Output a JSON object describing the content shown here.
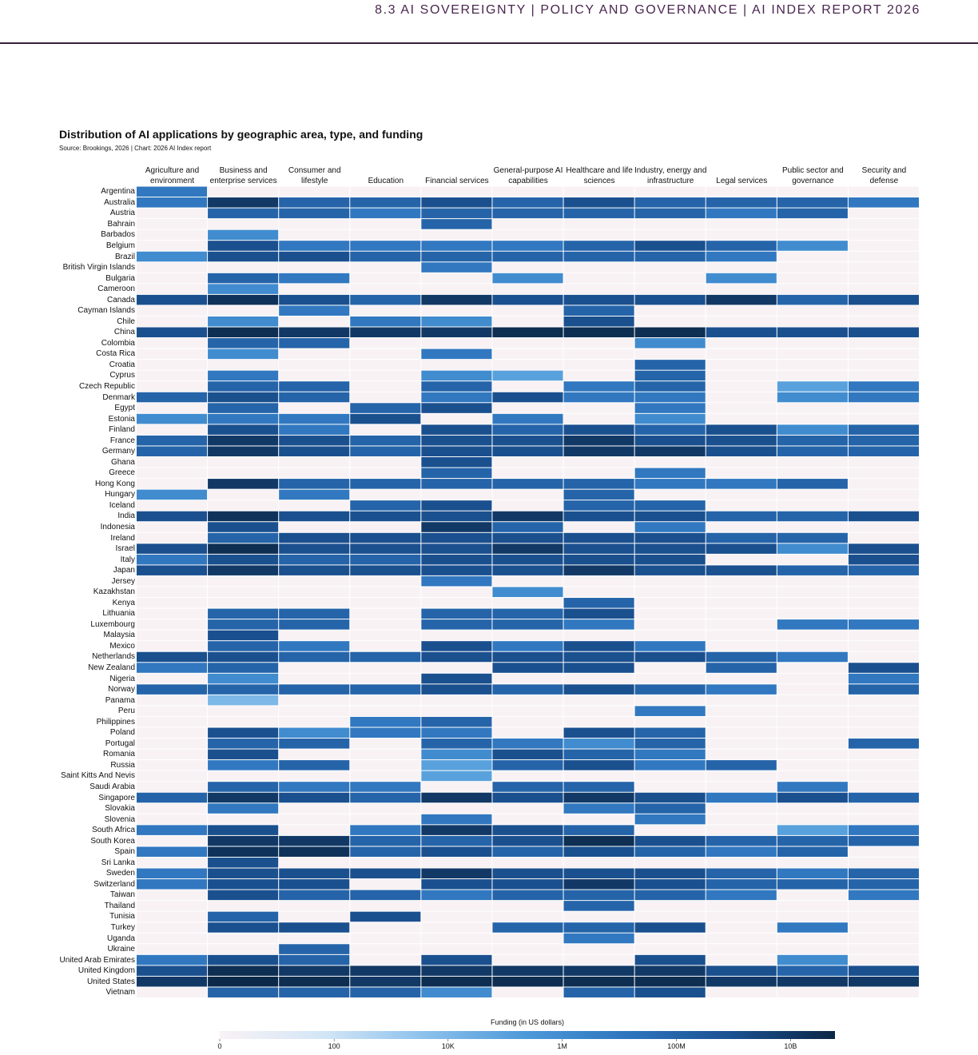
{
  "header": "8.3 AI SOVEREIGNTY  |  POLICY AND GOVERNANCE  |  AI INDEX REPORT 2026",
  "chart_data": {
    "type": "heatmap",
    "title": "Distribution of AI applications by geographic area, type, and funding",
    "subtitle": "Source: Brookings, 2026 | Chart: 2026 AI Index report",
    "colorbar_label": "Funding (in US dollars)",
    "x": [
      "Agriculture and environment",
      "Business and enterprise services",
      "Consumer and lifestyle",
      "Education",
      "Financial services",
      "General-purpose AI capabilities",
      "Healthcare and life sciences",
      "Industry, energy and infrastructure",
      "Legal services",
      "Public sector and governance",
      "Security and defense"
    ],
    "y": [
      "Argentina",
      "Australia",
      "Austria",
      "Bahrain",
      "Barbados",
      "Belgium",
      "Brazil",
      "British Virgin Islands",
      "Bulgaria",
      "Cameroon",
      "Canada",
      "Cayman Islands",
      "Chile",
      "China",
      "Colombia",
      "Costa Rica",
      "Croatia",
      "Cyprus",
      "Czech Republic",
      "Denmark",
      "Egypt",
      "Estonia",
      "Finland",
      "France",
      "Germany",
      "Ghana",
      "Greece",
      "Hong Kong",
      "Hungary",
      "Iceland",
      "India",
      "Indonesia",
      "Ireland",
      "Israel",
      "Italy",
      "Japan",
      "Jersey",
      "Kazakhstan",
      "Kenya",
      "Lithuania",
      "Luxembourg",
      "Malaysia",
      "Mexico",
      "Netherlands",
      "New Zealand",
      "Nigeria",
      "Norway",
      "Panama",
      "Peru",
      "Philippines",
      "Poland",
      "Portugal",
      "Romania",
      "Russia",
      "Saint Kitts And Nevis",
      "Saudi Arabia",
      "Singapore",
      "Slovakia",
      "Slovenia",
      "South Africa",
      "South Korea",
      "Spain",
      "Sri Lanka",
      "Sweden",
      "Switzerland",
      "Taiwan",
      "Thailand",
      "Tunisia",
      "Turkey",
      "Uganda",
      "Ukraine",
      "United Arab Emirates",
      "United Kingdom",
      "United States",
      "Vietnam"
    ],
    "values": [
      [
        10000000.0,
        0,
        0,
        0,
        0,
        0,
        0,
        0,
        0,
        0,
        0
      ],
      [
        10000000.0,
        10000000000.0,
        100000000.0,
        100000000.0,
        1000000000.0,
        100000000.0,
        1000000000.0,
        100000000.0,
        100000000.0,
        100000000.0,
        10000000.0
      ],
      [
        0,
        100000000.0,
        100000000.0,
        10000000.0,
        100000000.0,
        100000000.0,
        100000000.0,
        100000000.0,
        10000000.0,
        100000000.0,
        0
      ],
      [
        0,
        0,
        0,
        0,
        100000000.0,
        0,
        0,
        0,
        0,
        0,
        0
      ],
      [
        0,
        1000000.0,
        0,
        0,
        0,
        0,
        0,
        0,
        0,
        0,
        0
      ],
      [
        0,
        1000000000.0,
        10000000.0,
        10000000.0,
        10000000.0,
        10000000.0,
        100000000.0,
        1000000000.0,
        100000000.0,
        1000000.0,
        0
      ],
      [
        1000000.0,
        1000000000.0,
        1000000000.0,
        100000000.0,
        100000000.0,
        100000000.0,
        100000000.0,
        100000000.0,
        10000000.0,
        0,
        0
      ],
      [
        0,
        0,
        0,
        0,
        10000000.0,
        0,
        0,
        0,
        0,
        0,
        0
      ],
      [
        0,
        100000000.0,
        10000000.0,
        0,
        0,
        1000000.0,
        0,
        0,
        1000000.0,
        0,
        0
      ],
      [
        0,
        1000000.0,
        0,
        0,
        0,
        0,
        0,
        0,
        0,
        0,
        0
      ],
      [
        1000000000.0,
        20000000000.0,
        1000000000.0,
        100000000.0,
        10000000000.0,
        1000000000.0,
        1000000000.0,
        1000000000.0,
        10000000000.0,
        100000000.0,
        1000000000.0
      ],
      [
        0,
        0,
        10000000.0,
        0,
        0,
        0,
        100000000.0,
        0,
        0,
        0,
        0
      ],
      [
        0,
        1000000.0,
        0,
        10000000.0,
        1000000.0,
        0,
        1000000000.0,
        0,
        0,
        0,
        0
      ],
      [
        1000000000.0,
        30000000000.0,
        10000000000.0,
        10000000000.0,
        10000000000.0,
        30000000000.0,
        30000000000.0,
        30000000000.0,
        1000000000.0,
        1000000000.0,
        1000000000.0
      ],
      [
        0,
        100000000.0,
        100000000.0,
        0,
        0,
        0,
        0,
        1000000.0,
        0,
        0,
        0
      ],
      [
        0,
        1000000.0,
        0,
        0,
        10000000.0,
        0,
        0,
        0,
        0,
        0,
        0
      ],
      [
        0,
        0,
        0,
        0,
        0,
        0,
        0,
        100000000.0,
        0,
        0,
        0
      ],
      [
        0,
        10000000.0,
        0,
        0,
        1000000.0,
        100000.0,
        0,
        100000000.0,
        0,
        0,
        0
      ],
      [
        0,
        100000000.0,
        100000000.0,
        0,
        100000000.0,
        0,
        10000000.0,
        100000000.0,
        0,
        100000.0,
        10000000.0
      ],
      [
        100000000.0,
        1000000000.0,
        100000000.0,
        0,
        10000000.0,
        1000000000.0,
        10000000.0,
        10000000.0,
        0,
        1000000.0,
        10000000.0
      ],
      [
        0,
        100000000.0,
        0,
        100000000.0,
        1000000000.0,
        0,
        0,
        10000000.0,
        0,
        0,
        0
      ],
      [
        1000000.0,
        10000000.0,
        10000000.0,
        1000000000.0,
        0,
        10000000.0,
        0,
        1000000.0,
        0,
        0,
        0
      ],
      [
        0,
        1000000000.0,
        10000000.0,
        0,
        1000000000.0,
        100000000.0,
        1000000000.0,
        100000000.0,
        1000000000.0,
        1000000.0,
        100000000.0
      ],
      [
        100000000.0,
        10000000000.0,
        1000000000.0,
        100000000.0,
        1000000000.0,
        1000000000.0,
        10000000000.0,
        1000000000.0,
        1000000000.0,
        100000000.0,
        100000000.0
      ],
      [
        100000000.0,
        10000000000.0,
        1000000000.0,
        100000000.0,
        1000000000.0,
        1000000000.0,
        10000000000.0,
        10000000000.0,
        1000000000.0,
        100000000.0,
        100000000.0
      ],
      [
        0,
        0,
        0,
        0,
        1000000000.0,
        0,
        0,
        0,
        0,
        0,
        0
      ],
      [
        0,
        0,
        0,
        0,
        100000000.0,
        0,
        0,
        10000000.0,
        0,
        0,
        0
      ],
      [
        0,
        10000000000.0,
        100000000.0,
        100000000.0,
        100000000.0,
        100000000.0,
        100000000.0,
        10000000.0,
        10000000.0,
        100000000.0,
        0
      ],
      [
        1000000.0,
        0,
        10000000.0,
        0,
        0,
        0,
        100000000.0,
        0,
        0,
        0,
        0
      ],
      [
        0,
        0,
        0,
        100000000.0,
        1000000000.0,
        0,
        100000000.0,
        100000000.0,
        0,
        0,
        0
      ],
      [
        1000000000.0,
        20000000000.0,
        1000000000.0,
        1000000000.0,
        1000000000.0,
        10000000000.0,
        1000000000.0,
        1000000000.0,
        100000000.0,
        100000000.0,
        1000000000.0
      ],
      [
        0,
        1000000000.0,
        0,
        0,
        10000000000.0,
        100000000.0,
        0,
        10000000.0,
        0,
        0,
        0
      ],
      [
        0,
        100000000.0,
        1000000000.0,
        1000000000.0,
        1000000000.0,
        1000000000.0,
        1000000000.0,
        1000000000.0,
        100000000.0,
        100000000.0,
        0
      ],
      [
        1000000000.0,
        30000000000.0,
        1000000000.0,
        1000000000.0,
        1000000000.0,
        10000000000.0,
        1000000000.0,
        1000000000.0,
        1000000000.0,
        1000000.0,
        1000000000.0
      ],
      [
        10000000.0,
        1000000000.0,
        100000000.0,
        100000000.0,
        1000000000.0,
        1000000000.0,
        1000000000.0,
        1000000000.0,
        0,
        0,
        1000000000.0
      ],
      [
        1000000000.0,
        10000000000.0,
        1000000000.0,
        1000000000.0,
        1000000000.0,
        1000000000.0,
        10000000000.0,
        1000000000.0,
        1000000000.0,
        100000000.0,
        100000000.0
      ],
      [
        0,
        0,
        0,
        0,
        10000000.0,
        0,
        0,
        0,
        0,
        0,
        0
      ],
      [
        0,
        0,
        0,
        0,
        0,
        1000000.0,
        0,
        0,
        0,
        0,
        0
      ],
      [
        0,
        0,
        0,
        0,
        0,
        0,
        100000000.0,
        0,
        0,
        0,
        0
      ],
      [
        0,
        100000000.0,
        100000000.0,
        0,
        100000000.0,
        100000000.0,
        1000000000.0,
        0,
        0,
        0,
        0
      ],
      [
        0,
        100000000.0,
        100000000.0,
        0,
        100000000.0,
        100000000.0,
        10000000.0,
        0,
        0,
        10000000.0,
        10000000.0
      ],
      [
        0,
        1000000000.0,
        0,
        0,
        0,
        0,
        0,
        0,
        0,
        0,
        0
      ],
      [
        0,
        100000000.0,
        10000000.0,
        0,
        1000000000.0,
        10000000.0,
        1000000000.0,
        10000000.0,
        0,
        0,
        0
      ],
      [
        1000000000.0,
        1000000000.0,
        100000000.0,
        100000000.0,
        1000000000.0,
        1000000000.0,
        1000000000.0,
        1000000000.0,
        100000000.0,
        10000000.0,
        0
      ],
      [
        10000000.0,
        100000000.0,
        0,
        0,
        0,
        1000000000.0,
        1000000000.0,
        0,
        100000000.0,
        0,
        1000000000.0
      ],
      [
        0,
        1000000.0,
        0,
        0,
        1000000000.0,
        0,
        0,
        0,
        0,
        0,
        10000000.0
      ],
      [
        100000000.0,
        100000000.0,
        100000000.0,
        100000000.0,
        1000000000.0,
        100000000.0,
        1000000000.0,
        100000000.0,
        10000000.0,
        0,
        100000000.0
      ],
      [
        0,
        10000.0,
        0,
        0,
        0,
        0,
        0,
        0,
        0,
        0,
        0
      ],
      [
        0,
        0,
        0,
        0,
        0,
        0,
        0,
        10000000.0,
        0,
        0,
        0
      ],
      [
        0,
        0,
        0,
        10000000.0,
        100000000.0,
        0,
        0,
        0,
        0,
        0,
        0
      ],
      [
        0,
        1000000000.0,
        1000000.0,
        10000000.0,
        10000000.0,
        0,
        1000000000.0,
        100000000.0,
        0,
        0,
        0
      ],
      [
        0,
        100000000.0,
        100000000.0,
        0,
        100000000.0,
        10000000.0,
        1000000.0,
        100000000.0,
        0,
        0,
        100000000.0
      ],
      [
        0,
        1000000000.0,
        0,
        0,
        1000000.0,
        1000000000.0,
        100000000.0,
        10000000.0,
        0,
        0,
        0
      ],
      [
        0,
        10000000.0,
        100000000.0,
        0,
        100000.0,
        100000000.0,
        1000000000.0,
        10000000.0,
        100000000.0,
        0,
        0
      ],
      [
        0,
        0,
        0,
        0,
        100000.0,
        0,
        0,
        0,
        0,
        0,
        0
      ],
      [
        0,
        100000000.0,
        10000000.0,
        10000000.0,
        0,
        100000000.0,
        100000000.0,
        0,
        0,
        10000000.0,
        0
      ],
      [
        100000000.0,
        10000000000.0,
        1000000000.0,
        100000000.0,
        10000000000.0,
        1000000000.0,
        10000000000.0,
        1000000000.0,
        10000000.0,
        1000000000.0,
        100000000.0
      ],
      [
        0,
        10000000.0,
        0,
        0,
        0,
        0,
        10000000.0,
        100000000.0,
        0,
        0,
        0
      ],
      [
        0,
        0,
        0,
        0,
        10000000.0,
        0,
        0,
        10000000.0,
        0,
        0,
        0
      ],
      [
        10000000.0,
        1000000000.0,
        0,
        10000000.0,
        10000000000.0,
        1000000000.0,
        100000000.0,
        0,
        0,
        100000.0,
        10000000.0
      ],
      [
        0,
        10000000000.0,
        10000000000.0,
        100000000.0,
        100000000.0,
        1000000000.0,
        30000000000.0,
        1000000000.0,
        100000000.0,
        100000000.0,
        100000000.0
      ],
      [
        10000000.0,
        20000000000.0,
        20000000000.0,
        100000000.0,
        1000000000.0,
        100000000.0,
        1000000000.0,
        100000000.0,
        10000000.0,
        100000000.0,
        0
      ],
      [
        0,
        1000000000.0,
        0,
        0,
        0,
        0,
        0,
        0,
        0,
        0,
        0
      ],
      [
        10000000.0,
        1000000000.0,
        1000000000.0,
        1000000000.0,
        10000000000.0,
        1000000000.0,
        1000000000.0,
        1000000000.0,
        100000000.0,
        10000000.0,
        100000000.0
      ],
      [
        10000000.0,
        1000000000.0,
        1000000000.0,
        0,
        1000000000.0,
        1000000000.0,
        10000000000.0,
        1000000000.0,
        100000000.0,
        100000000.0,
        100000000.0
      ],
      [
        0,
        1000000000.0,
        100000000.0,
        100000000.0,
        10000000.0,
        100000000.0,
        100000000.0,
        100000000.0,
        10000000.0,
        0,
        10000000.0
      ],
      [
        0,
        0,
        0,
        0,
        0,
        0,
        100000000.0,
        0,
        0,
        0,
        0
      ],
      [
        0,
        100000000.0,
        0,
        1000000000.0,
        0,
        0,
        0,
        0,
        0,
        0,
        0
      ],
      [
        0,
        1000000000.0,
        1000000000.0,
        0,
        0,
        100000000.0,
        100000000.0,
        1000000000.0,
        0,
        10000000.0,
        0
      ],
      [
        0,
        0,
        0,
        0,
        0,
        0,
        10000000.0,
        0,
        0,
        0,
        0
      ],
      [
        0,
        0,
        100000000.0,
        0,
        0,
        0,
        0,
        0,
        0,
        0,
        0
      ],
      [
        10000000.0,
        1000000000.0,
        100000000.0,
        0,
        1000000000.0,
        0,
        0,
        1000000000.0,
        0,
        1000000.0,
        0
      ],
      [
        1000000000.0,
        30000000000.0,
        10000000000.0,
        10000000000.0,
        10000000000.0,
        10000000000.0,
        10000000000.0,
        10000000000.0,
        1000000000.0,
        100000000.0,
        1000000000.0
      ],
      [
        10000000000.0,
        50000000000.0,
        30000000000.0,
        10000000000.0,
        30000000000.0,
        30000000000.0,
        30000000000.0,
        30000000000.0,
        10000000000.0,
        10000000000.0,
        10000000000.0
      ],
      [
        0,
        100000000.0,
        100000000.0,
        100000000.0,
        1000000.0,
        0,
        100000000.0,
        1000000000.0,
        0,
        0,
        0
      ]
    ],
    "clim": [
      0,
      60000000000.0
    ],
    "cticks": [
      0,
      100,
      {
        "value": 10000,
        "label": "10K"
      },
      {
        "value": 1000000,
        "label": "1M"
      },
      {
        "value": 100000000,
        "label": "100M"
      },
      {
        "value": 10000000000,
        "label": "10B"
      }
    ],
    "log_scale": true,
    "colorscale": [
      "#f8f2f5",
      "#d4e6f6",
      "#8cc1ec",
      "#4b98d8",
      "#2e74bd",
      "#1b5090",
      "#0b2746"
    ]
  }
}
